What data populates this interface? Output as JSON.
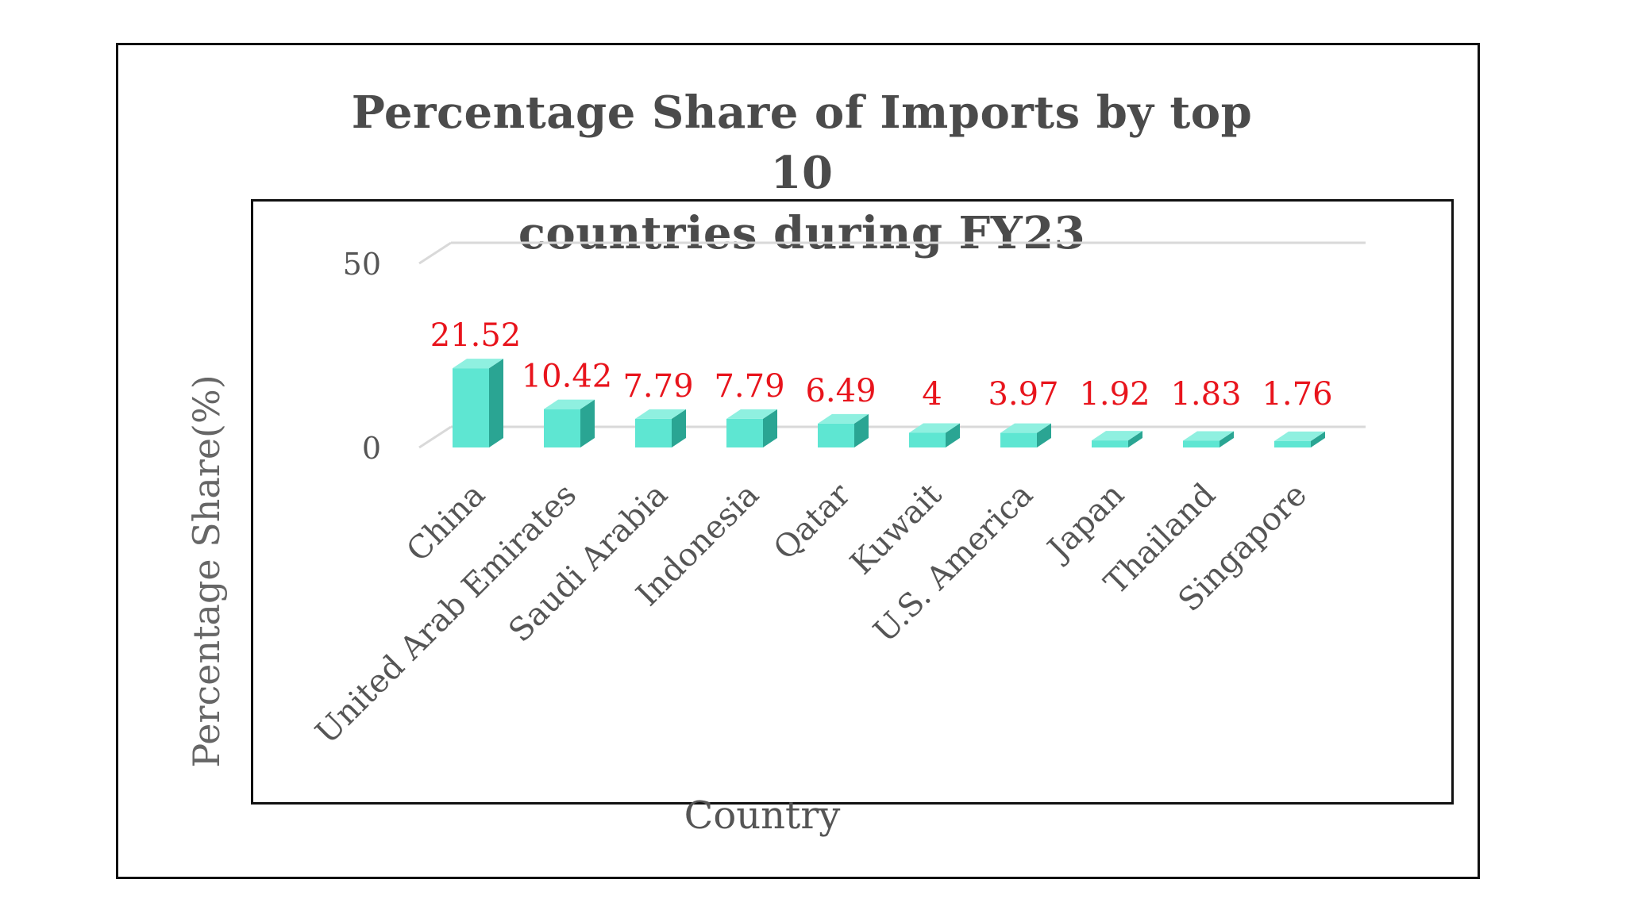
{
  "chart_data": {
    "type": "bar",
    "title_lines": [
      "Percentage Share of Imports by top 10",
      "countries during FY23"
    ],
    "xlabel": "Country",
    "ylabel": "Percentage Share(%)",
    "ylim": [
      0,
      50
    ],
    "yticks": [
      "0",
      "50"
    ],
    "categories": [
      "China",
      "United Arab Emirates",
      "Saudi Arabia",
      "Indonesia",
      "Qatar",
      "Kuwait",
      "U.S. America",
      "Japan",
      "Thailand",
      "Singapore"
    ],
    "values": [
      21.52,
      10.42,
      7.79,
      7.79,
      6.49,
      4,
      3.97,
      1.92,
      1.83,
      1.76
    ],
    "value_labels": [
      "21.52",
      "10.42",
      "7.79",
      "7.79",
      "6.49",
      "4",
      "3.97",
      "1.92",
      "1.83",
      "1.76"
    ],
    "bar_color": "#5ee6d2",
    "bar_side_color": "#2aa593",
    "bar_top_color": "#8ff0e0",
    "label_color": "#e8141c",
    "gridlines": true
  }
}
